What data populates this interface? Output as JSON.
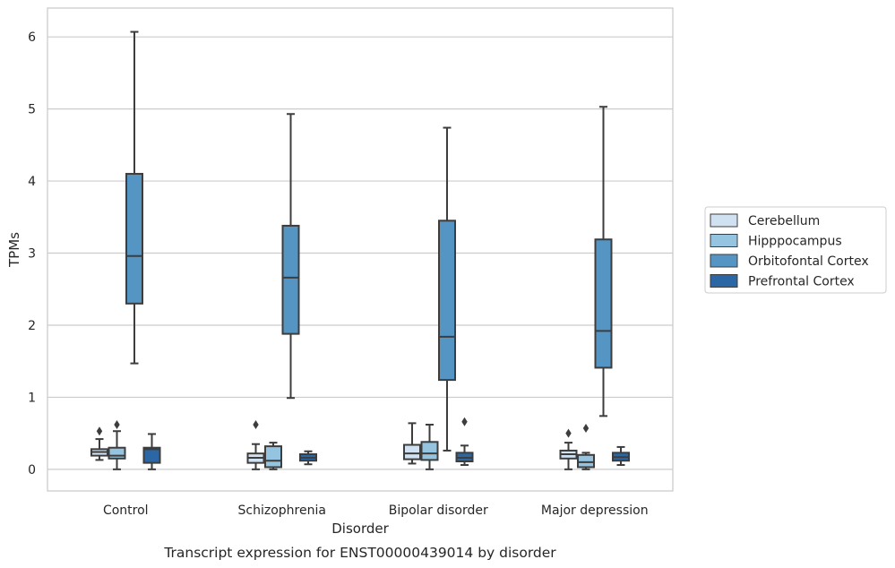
{
  "chart_data": {
    "type": "box",
    "caption": "Transcript expression for ENST00000439014 by disorder",
    "xlabel": "Disorder",
    "ylabel": "TPMs",
    "ylim": [
      -0.3,
      6.4
    ],
    "yticks": [
      0,
      1,
      2,
      3,
      4,
      5,
      6
    ],
    "grid": "horizontal",
    "legend_position": "right",
    "categories": [
      "Control",
      "Schizophrenia",
      "Bipolar disorder",
      "Major depression"
    ],
    "series": [
      {
        "name": "Cerebellum",
        "color": "#d0e1f2",
        "boxes": [
          {
            "whisker_low": 0.13,
            "q1": 0.19,
            "median": 0.24,
            "q3": 0.28,
            "whisker_high": 0.42,
            "outliers": [
              0.53
            ]
          },
          {
            "whisker_low": 0.0,
            "q1": 0.09,
            "median": 0.16,
            "q3": 0.22,
            "whisker_high": 0.35,
            "outliers": [
              0.62
            ]
          },
          {
            "whisker_low": 0.08,
            "q1": 0.14,
            "median": 0.22,
            "q3": 0.34,
            "whisker_high": 0.64,
            "outliers": []
          },
          {
            "whisker_low": 0.0,
            "q1": 0.15,
            "median": 0.21,
            "q3": 0.26,
            "whisker_high": 0.37,
            "outliers": [
              0.5
            ]
          }
        ]
      },
      {
        "name": "Hipppocampus",
        "color": "#94c4df",
        "boxes": [
          {
            "whisker_low": 0.0,
            "q1": 0.15,
            "median": 0.19,
            "q3": 0.3,
            "whisker_high": 0.53,
            "outliers": [
              0.62
            ]
          },
          {
            "whisker_low": 0.0,
            "q1": 0.03,
            "median": 0.12,
            "q3": 0.32,
            "whisker_high": 0.37,
            "outliers": []
          },
          {
            "whisker_low": 0.0,
            "q1": 0.13,
            "median": 0.22,
            "q3": 0.38,
            "whisker_high": 0.62,
            "outliers": []
          },
          {
            "whisker_low": 0.0,
            "q1": 0.03,
            "median": 0.1,
            "q3": 0.2,
            "whisker_high": 0.23,
            "outliers": [
              0.57
            ]
          }
        ]
      },
      {
        "name": "Orbitofontal Cortex",
        "color": "#5495c3",
        "boxes": [
          {
            "whisker_low": 1.47,
            "q1": 2.3,
            "median": 2.96,
            "q3": 4.1,
            "whisker_high": 6.07,
            "outliers": []
          },
          {
            "whisker_low": 0.99,
            "q1": 1.88,
            "median": 2.66,
            "q3": 3.38,
            "whisker_high": 4.93,
            "outliers": []
          },
          {
            "whisker_low": 0.26,
            "q1": 1.24,
            "median": 1.84,
            "q3": 3.45,
            "whisker_high": 4.74,
            "outliers": []
          },
          {
            "whisker_low": 0.74,
            "q1": 1.41,
            "median": 1.92,
            "q3": 3.19,
            "whisker_high": 5.03,
            "outliers": []
          }
        ]
      },
      {
        "name": "Prefrontal Cortex",
        "color": "#2b67a4",
        "boxes": [
          {
            "whisker_low": 0.0,
            "q1": 0.09,
            "median": 0.28,
            "q3": 0.3,
            "whisker_high": 0.49,
            "outliers": []
          },
          {
            "whisker_low": 0.07,
            "q1": 0.12,
            "median": 0.16,
            "q3": 0.21,
            "whisker_high": 0.25,
            "outliers": []
          },
          {
            "whisker_low": 0.06,
            "q1": 0.11,
            "median": 0.16,
            "q3": 0.23,
            "whisker_high": 0.33,
            "outliers": [
              0.66
            ]
          },
          {
            "whisker_low": 0.06,
            "q1": 0.12,
            "median": 0.17,
            "q3": 0.23,
            "whisker_high": 0.31,
            "outliers": []
          }
        ]
      }
    ]
  }
}
